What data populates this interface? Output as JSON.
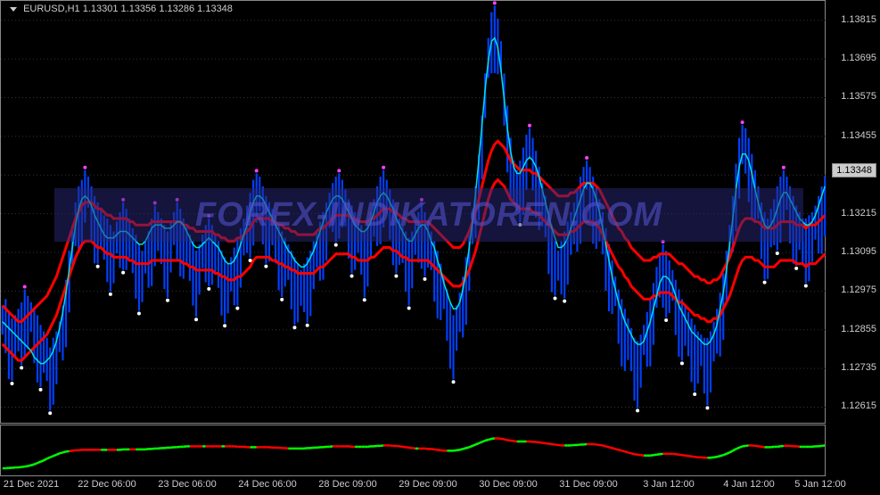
{
  "title": {
    "symbol": "EURUSD,H1",
    "ohlc": "1.13301 1.13356 1.13286 1.13348"
  },
  "watermark": "FOREX-INDIKATOREN.COM",
  "colors": {
    "background": "#000000",
    "grid": "#888888",
    "text": "#cccccc",
    "candle_up": "#0040ff",
    "candle_down": "#0040ff",
    "line_cyan": "#00e0e0",
    "line_red": "#ff0000",
    "dot_high": "#ff40ff",
    "dot_low": "#ffffff",
    "sub_green": "#00ff00",
    "sub_red": "#ff0000",
    "watermark_bg": "rgba(40,40,120,0.5)",
    "watermark_text": "rgba(80,80,200,0.6)",
    "price_box_bg": "#cccccc",
    "price_box_text": "#000000"
  },
  "y_axis": {
    "min": 1.12561,
    "max": 1.13875,
    "ticks": [
      1.12615,
      1.12735,
      1.12855,
      1.12975,
      1.13095,
      1.13215,
      1.13335,
      1.13455,
      1.13575,
      1.13695,
      1.13815
    ],
    "current_price": 1.13348
  },
  "x_axis": {
    "labels": [
      "21 Dec 2021",
      "22 Dec 06:00",
      "23 Dec 06:00",
      "24 Dec 06:00",
      "28 Dec 09:00",
      "29 Dec 09:00",
      "30 Dec 09:00",
      "31 Dec 09:00",
      "3 Jan 12:00",
      "4 Jan 12:00",
      "5 Jan 12:00"
    ],
    "positions": [
      35,
      120,
      210,
      300,
      390,
      480,
      570,
      660,
      750,
      840,
      920
    ]
  },
  "main_chart": {
    "candles": {
      "count": 260,
      "seed_high": [
        1.1293,
        1.1295,
        1.1291,
        1.1289,
        1.129,
        1.1292,
        1.1294,
        1.1298,
        1.1296,
        1.1294,
        1.1292,
        1.129,
        1.1287,
        1.1285,
        1.1283,
        1.128,
        1.1283,
        1.1285,
        1.1288,
        1.1293,
        1.1301,
        1.131,
        1.1318,
        1.1325,
        1.133,
        1.1332,
        1.1335,
        1.1333,
        1.133,
        1.1327,
        1.1325,
        1.1323,
        1.1321,
        1.132,
        1.1318,
        1.1316,
        1.1319,
        1.1322,
        1.1325,
        1.1323,
        1.132,
        1.1317,
        1.1315,
        1.1312,
        1.131,
        1.1313,
        1.1316,
        1.132,
        1.1324,
        1.1322,
        1.132,
        1.1318,
        1.1316,
        1.1319,
        1.1322,
        1.1325,
        1.1323,
        1.132,
        1.1318,
        1.1315,
        1.1313,
        1.131,
        1.1312,
        1.1315,
        1.1318,
        1.132,
        1.1318,
        1.1315,
        1.1313,
        1.131,
        1.1308,
        1.1306,
        1.1308,
        1.1311,
        1.1314,
        1.1317,
        1.132,
        1.1324,
        1.1328,
        1.1332,
        1.1334,
        1.1333,
        1.133,
        1.1327,
        1.1325,
        1.1323,
        1.1321,
        1.1318,
        1.1316,
        1.1314,
        1.1312,
        1.131,
        1.1308,
        1.1306,
        1.1304,
        1.1306,
        1.1308,
        1.131,
        1.1313,
        1.1316,
        1.1319,
        1.1322,
        1.1325,
        1.1328,
        1.1331,
        1.1333,
        1.1334,
        1.1332,
        1.1329,
        1.1326,
        1.1324,
        1.1322,
        1.132,
        1.1318,
        1.1316,
        1.1319,
        1.1322,
        1.1326,
        1.133,
        1.1333,
        1.1335,
        1.1332,
        1.1329,
        1.1326,
        1.1323,
        1.132,
        1.1318,
        1.1316,
        1.1314,
        1.1316,
        1.1319,
        1.1322,
        1.1325,
        1.1322,
        1.1319,
        1.1316,
        1.1313,
        1.131,
        1.1306,
        1.1302,
        1.1298,
        1.1294,
        1.129,
        1.1293,
        1.1297,
        1.1302,
        1.1308,
        1.1315,
        1.1322,
        1.133,
        1.134,
        1.1352,
        1.1365,
        1.1376,
        1.1384,
        1.1386,
        1.1382,
        1.1375,
        1.1365,
        1.1355,
        1.1345,
        1.1338,
        1.1335,
        1.1338,
        1.1342,
        1.1346,
        1.1348,
        1.1345,
        1.1341,
        1.1336,
        1.1331,
        1.1327,
        1.1322,
        1.1318,
        1.1313,
        1.131,
        1.1313,
        1.1316,
        1.1319,
        1.1322,
        1.1325,
        1.1329,
        1.1333,
        1.1336,
        1.1338,
        1.1336,
        1.1333,
        1.133,
        1.1326,
        1.1322,
        1.1317,
        1.1312,
        1.1307,
        1.1302,
        1.1298,
        1.1295,
        1.1292,
        1.1289,
        1.1286,
        1.1283,
        1.1282,
        1.1284,
        1.1287,
        1.1291,
        1.1295,
        1.13,
        1.1305,
        1.1309,
        1.1312,
        1.131,
        1.1307,
        1.1304,
        1.1301,
        1.1298,
        1.1295,
        1.1293,
        1.1291,
        1.1289,
        1.1287,
        1.1285,
        1.1284,
        1.1283,
        1.1283,
        1.1285,
        1.1288,
        1.1292,
        1.1297,
        1.1303,
        1.131,
        1.1318,
        1.1327,
        1.1337,
        1.1345,
        1.1349,
        1.1348,
        1.1345,
        1.134,
        1.1335,
        1.133,
        1.1325,
        1.1322,
        1.132,
        1.1323,
        1.1326,
        1.133,
        1.1333,
        1.1335,
        1.1333,
        1.133,
        1.1327,
        1.1324,
        1.1322,
        1.132,
        1.132,
        1.1321,
        1.1322,
        1.1324,
        1.1327,
        1.133,
        1.1333
      ],
      "seed_low_offset": 0.0015
    },
    "cyan_line": [
      1.1288,
      1.1287,
      1.1286,
      1.1285,
      1.1284,
      1.1283,
      1.1282,
      1.1281,
      1.128,
      1.1279,
      1.1277,
      1.1276,
      1.1275,
      1.1275,
      1.1276,
      1.1277,
      1.1279,
      1.1282,
      1.1286,
      1.1291,
      1.1297,
      1.1304,
      1.1311,
      1.1318,
      1.1323,
      1.1326,
      1.1327,
      1.1326,
      1.1324,
      1.1321,
      1.1319,
      1.1317,
      1.1315,
      1.1314,
      1.1314,
      1.1314,
      1.1315,
      1.1316,
      1.1316,
      1.1316,
      1.1315,
      1.1314,
      1.1313,
      1.1312,
      1.1312,
      1.1313,
      1.1315,
      1.1317,
      1.1318,
      1.1318,
      1.1318,
      1.1317,
      1.1317,
      1.1317,
      1.1318,
      1.1319,
      1.1319,
      1.1318,
      1.1316,
      1.1314,
      1.1312,
      1.1311,
      1.1311,
      1.1312,
      1.1313,
      1.1314,
      1.1313,
      1.1312,
      1.1311,
      1.1309,
      1.1307,
      1.1306,
      1.1306,
      1.1307,
      1.1309,
      1.1312,
      1.1315,
      1.1318,
      1.1322,
      1.1325,
      1.1327,
      1.1327,
      1.1326,
      1.1324,
      1.1322,
      1.132,
      1.1318,
      1.1316,
      1.1314,
      1.1312,
      1.131,
      1.1309,
      1.1307,
      1.1306,
      1.1305,
      1.1305,
      1.1306,
      1.1308,
      1.131,
      1.1313,
      1.1316,
      1.1319,
      1.1322,
      1.1324,
      1.1326,
      1.1327,
      1.1327,
      1.1326,
      1.1324,
      1.1322,
      1.132,
      1.1318,
      1.1317,
      1.1316,
      1.1316,
      1.1317,
      1.1319,
      1.1322,
      1.1325,
      1.1327,
      1.1328,
      1.1327,
      1.1325,
      1.1323,
      1.132,
      1.1318,
      1.1316,
      1.1314,
      1.1313,
      1.1313,
      1.1315,
      1.1317,
      1.1318,
      1.1318,
      1.1316,
      1.1313,
      1.1311,
      1.1307,
      1.1304,
      1.13,
      1.1297,
      1.1294,
      1.1292,
      1.1292,
      1.1294,
      1.1298,
      1.1304,
      1.1311,
      1.1319,
      1.1328,
      1.1338,
      1.1349,
      1.136,
      1.1369,
      1.1375,
      1.1376,
      1.1373,
      1.1366,
      1.1357,
      1.1348,
      1.1341,
      1.1336,
      1.1334,
      1.1334,
      1.1336,
      1.1338,
      1.1339,
      1.1338,
      1.1336,
      1.1333,
      1.1329,
      1.1325,
      1.1321,
      1.1317,
      1.1314,
      1.1311,
      1.1311,
      1.1312,
      1.1314,
      1.1317,
      1.132,
      1.1323,
      1.1326,
      1.1329,
      1.1331,
      1.1331,
      1.1329,
      1.1326,
      1.1322,
      1.1317,
      1.1312,
      1.1307,
      1.1302,
      1.1298,
      1.1294,
      1.1291,
      1.1288,
      1.1286,
      1.1284,
      1.1282,
      1.1281,
      1.1281,
      1.1282,
      1.1285,
      1.1288,
      1.1292,
      1.1296,
      1.13,
      1.1302,
      1.1302,
      1.1301,
      1.1299,
      1.1296,
      1.1293,
      1.1291,
      1.1289,
      1.1287,
      1.1285,
      1.1284,
      1.1283,
      1.1282,
      1.1281,
      1.1281,
      1.1282,
      1.1284,
      1.1287,
      1.1292,
      1.1297,
      1.1304,
      1.1312,
      1.132,
      1.1329,
      1.1336,
      1.134,
      1.134,
      1.1338,
      1.1334,
      1.1329,
      1.1325,
      1.1321,
      1.1318,
      1.1317,
      1.1318,
      1.132,
      1.1323,
      1.1326,
      1.1328,
      1.1328,
      1.1326,
      1.1324,
      1.1322,
      1.132,
      1.1319,
      1.1318,
      1.1318,
      1.1319,
      1.1321,
      1.1324,
      1.1327,
      1.133
    ],
    "red_upper": [
      1.1293,
      1.1292,
      1.1291,
      1.129,
      1.1289,
      1.1288,
      1.1288,
      1.1289,
      1.129,
      1.1291,
      1.1292,
      1.1293,
      1.1294,
      1.1295,
      1.1296,
      1.1298,
      1.13,
      1.1302,
      1.1305,
      1.1308,
      1.1311,
      1.1314,
      1.1317,
      1.132,
      1.1322,
      1.1324,
      1.1325,
      1.1325,
      1.1325,
      1.1324,
      1.1323,
      1.1323,
      1.1322,
      1.1321,
      1.1321,
      1.132,
      1.132,
      1.132,
      1.132,
      1.132,
      1.1319,
      1.1319,
      1.1318,
      1.1318,
      1.1318,
      1.1318,
      1.1318,
      1.1319,
      1.1319,
      1.1319,
      1.1319,
      1.1319,
      1.1319,
      1.1319,
      1.1319,
      1.1319,
      1.1319,
      1.1318,
      1.1318,
      1.1317,
      1.1317,
      1.1316,
      1.1316,
      1.1316,
      1.1316,
      1.1316,
      1.1316,
      1.1315,
      1.1315,
      1.1314,
      1.1314,
      1.1313,
      1.1313,
      1.1313,
      1.1314,
      1.1314,
      1.1315,
      1.1316,
      1.1317,
      1.1319,
      1.132,
      1.132,
      1.132,
      1.132,
      1.132,
      1.1319,
      1.1319,
      1.1318,
      1.1318,
      1.1317,
      1.1317,
      1.1316,
      1.1316,
      1.1315,
      1.1315,
      1.1315,
      1.1315,
      1.1315,
      1.1315,
      1.1316,
      1.1317,
      1.1317,
      1.1318,
      1.1319,
      1.132,
      1.1321,
      1.1321,
      1.1321,
      1.1321,
      1.1321,
      1.132,
      1.132,
      1.1319,
      1.1319,
      1.1319,
      1.1319,
      1.132,
      1.132,
      1.1321,
      1.1322,
      1.1323,
      1.1323,
      1.1323,
      1.1322,
      1.1322,
      1.1321,
      1.132,
      1.132,
      1.1319,
      1.1319,
      1.1319,
      1.1319,
      1.1319,
      1.1319,
      1.1319,
      1.1318,
      1.1317,
      1.1316,
      1.1315,
      1.1314,
      1.1313,
      1.1312,
      1.1311,
      1.1311,
      1.1311,
      1.1312,
      1.1314,
      1.1316,
      1.1319,
      1.1322,
      1.1326,
      1.133,
      1.1334,
      1.1338,
      1.1341,
      1.1343,
      1.1344,
      1.1343,
      1.1342,
      1.134,
      1.1338,
      1.1337,
      1.1336,
      1.1335,
      1.1335,
      1.1335,
      1.1335,
      1.1334,
      1.1334,
      1.1333,
      1.1332,
      1.1331,
      1.133,
      1.1329,
      1.1328,
      1.1327,
      1.1327,
      1.1327,
      1.1327,
      1.1328,
      1.1328,
      1.1329,
      1.133,
      1.1331,
      1.1331,
      1.1331,
      1.1331,
      1.133,
      1.1329,
      1.1327,
      1.1325,
      1.1323,
      1.1321,
      1.1319,
      1.1317,
      1.1316,
      1.1314,
      1.1313,
      1.1311,
      1.131,
      1.1309,
      1.1308,
      1.1307,
      1.1307,
      1.1307,
      1.1308,
      1.1308,
      1.1309,
      1.1309,
      1.1309,
      1.1309,
      1.1308,
      1.1307,
      1.1306,
      1.1306,
      1.1305,
      1.1304,
      1.1303,
      1.1302,
      1.1302,
      1.1301,
      1.1301,
      1.13,
      1.13,
      1.1301,
      1.1301,
      1.1302,
      1.1304,
      1.1306,
      1.1308,
      1.1311,
      1.1314,
      1.1317,
      1.1319,
      1.132,
      1.132,
      1.132,
      1.1319,
      1.1319,
      1.1318,
      1.1317,
      1.1317,
      1.1317,
      1.1317,
      1.1318,
      1.1319,
      1.1319,
      1.1319,
      1.1319,
      1.1319,
      1.1318,
      1.1318,
      1.1318,
      1.1317,
      1.1318,
      1.1318,
      1.1318,
      1.1319,
      1.132,
      1.1321
    ],
    "red_lower_offset": 0.0012
  },
  "sub_chart": {
    "values": [
      0.1,
      0.1,
      0.11,
      0.11,
      0.12,
      0.12,
      0.13,
      0.14,
      0.15,
      0.17,
      0.19,
      0.22,
      0.25,
      0.28,
      0.32,
      0.35,
      0.38,
      0.41,
      0.44,
      0.46,
      0.48,
      0.49,
      0.5,
      0.51,
      0.51,
      0.52,
      0.52,
      0.52,
      0.52,
      0.52,
      0.52,
      0.52,
      0.52,
      0.52,
      0.52,
      0.52,
      0.52,
      0.52,
      0.53,
      0.53,
      0.53,
      0.53,
      0.53,
      0.53,
      0.53,
      0.53,
      0.54,
      0.54,
      0.55,
      0.55,
      0.56,
      0.56,
      0.57,
      0.57,
      0.58,
      0.58,
      0.59,
      0.59,
      0.6,
      0.6,
      0.6,
      0.6,
      0.6,
      0.6,
      0.6,
      0.6,
      0.6,
      0.6,
      0.6,
      0.6,
      0.6,
      0.6,
      0.6,
      0.6,
      0.59,
      0.59,
      0.59,
      0.58,
      0.58,
      0.58,
      0.58,
      0.58,
      0.58,
      0.58,
      0.58,
      0.57,
      0.57,
      0.57,
      0.56,
      0.56,
      0.55,
      0.55,
      0.55,
      0.55,
      0.55,
      0.55,
      0.56,
      0.56,
      0.57,
      0.57,
      0.58,
      0.58,
      0.59,
      0.59,
      0.6,
      0.6,
      0.6,
      0.6,
      0.6,
      0.6,
      0.59,
      0.59,
      0.59,
      0.59,
      0.59,
      0.59,
      0.6,
      0.6,
      0.61,
      0.61,
      0.62,
      0.62,
      0.62,
      0.61,
      0.61,
      0.6,
      0.59,
      0.58,
      0.57,
      0.56,
      0.55,
      0.55,
      0.55,
      0.55,
      0.54,
      0.54,
      0.53,
      0.52,
      0.51,
      0.5,
      0.5,
      0.5,
      0.5,
      0.51,
      0.52,
      0.54,
      0.56,
      0.58,
      0.61,
      0.64,
      0.67,
      0.7,
      0.73,
      0.75,
      0.77,
      0.78,
      0.78,
      0.77,
      0.76,
      0.74,
      0.73,
      0.72,
      0.71,
      0.71,
      0.71,
      0.71,
      0.71,
      0.7,
      0.7,
      0.69,
      0.68,
      0.67,
      0.66,
      0.65,
      0.64,
      0.63,
      0.62,
      0.62,
      0.62,
      0.62,
      0.63,
      0.63,
      0.64,
      0.64,
      0.65,
      0.65,
      0.65,
      0.64,
      0.63,
      0.62,
      0.6,
      0.58,
      0.56,
      0.54,
      0.52,
      0.5,
      0.48,
      0.46,
      0.44,
      0.42,
      0.41,
      0.4,
      0.39,
      0.39,
      0.39,
      0.4,
      0.41,
      0.42,
      0.43,
      0.43,
      0.43,
      0.43,
      0.42,
      0.41,
      0.4,
      0.39,
      0.38,
      0.37,
      0.36,
      0.35,
      0.35,
      0.34,
      0.34,
      0.34,
      0.35,
      0.36,
      0.38,
      0.4,
      0.43,
      0.46,
      0.5,
      0.54,
      0.57,
      0.6,
      0.61,
      0.62,
      0.62,
      0.61,
      0.6,
      0.59,
      0.58,
      0.58,
      0.58,
      0.59,
      0.59,
      0.6,
      0.61,
      0.61,
      0.61,
      0.6,
      0.6,
      0.59,
      0.59,
      0.59,
      0.59,
      0.59,
      0.6,
      0.6,
      0.61,
      0.62
    ],
    "color_switch": [
      1,
      1,
      1,
      1,
      1,
      1,
      1,
      1,
      1,
      1,
      1,
      1,
      1,
      1,
      1,
      1,
      1,
      1,
      1,
      1,
      1,
      1,
      0,
      0,
      0,
      0,
      0,
      0,
      0,
      0,
      0,
      0,
      1,
      1,
      0,
      0,
      0,
      1,
      1,
      1,
      1,
      0,
      0,
      1,
      1,
      1,
      1,
      1,
      1,
      1,
      1,
      1,
      1,
      1,
      1,
      1,
      1,
      1,
      1,
      1,
      0,
      0,
      0,
      0,
      1,
      0,
      0,
      0,
      0,
      0,
      1,
      0,
      0,
      0,
      0,
      0,
      0,
      0,
      0,
      1,
      1,
      0,
      0,
      0,
      0,
      0,
      0,
      0,
      0,
      0,
      0,
      1,
      1,
      1,
      1,
      1,
      1,
      1,
      1,
      1,
      1,
      1,
      1,
      1,
      1,
      0,
      0,
      0,
      0,
      0,
      0,
      0,
      1,
      1,
      1,
      1,
      1,
      1,
      1,
      1,
      1,
      0,
      0,
      0,
      0,
      0,
      0,
      0,
      0,
      0,
      0,
      1,
      0,
      0,
      0,
      0,
      0,
      0,
      0,
      0,
      0,
      1,
      1,
      1,
      1,
      1,
      1,
      1,
      1,
      1,
      1,
      1,
      1,
      1,
      1,
      1,
      0,
      0,
      0,
      0,
      0,
      0,
      0,
      1,
      1,
      1,
      0,
      0,
      0,
      0,
      0,
      0,
      0,
      0,
      0,
      0,
      0,
      0,
      1,
      1,
      1,
      1,
      1,
      1,
      1,
      0,
      0,
      0,
      0,
      0,
      0,
      0,
      0,
      0,
      0,
      0,
      0,
      0,
      0,
      0,
      0,
      0,
      0,
      1,
      1,
      1,
      1,
      1,
      1,
      0,
      0,
      0,
      0,
      0,
      0,
      0,
      0,
      0,
      0,
      0,
      0,
      0,
      0,
      1,
      1,
      1,
      1,
      1,
      1,
      1,
      1,
      1,
      1,
      1,
      1,
      1,
      0,
      0,
      0,
      0,
      0,
      1,
      1,
      1,
      1,
      1,
      1,
      0,
      0,
      0,
      0,
      0,
      1,
      1,
      1,
      1,
      1,
      1,
      1,
      1
    ]
  }
}
